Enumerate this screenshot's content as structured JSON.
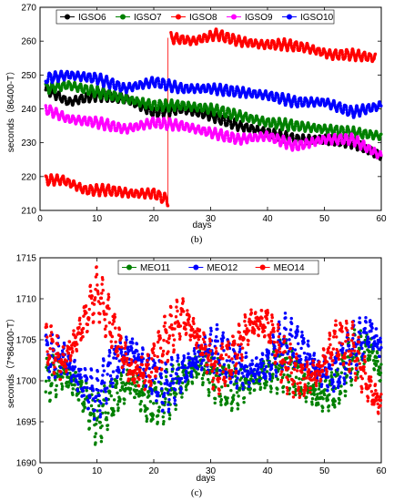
{
  "chart_data": [
    {
      "type": "scatter",
      "caption": "(b)",
      "xlabel": "days",
      "ylabel": "seconds（86400-T）",
      "xlim": [
        0,
        60
      ],
      "ylim": [
        210,
        270
      ],
      "xticks": [
        0,
        10,
        20,
        30,
        40,
        50,
        60
      ],
      "yticks": [
        210,
        220,
        230,
        240,
        250,
        260,
        270
      ],
      "grid": false,
      "legend_position": "top",
      "series": [
        {
          "name": "IGSO6",
          "color": "#000000",
          "marker": "circle",
          "x": [
            1,
            5,
            10,
            15,
            20,
            25,
            30,
            35,
            40,
            45,
            50,
            55,
            60
          ],
          "y": [
            246,
            242,
            244,
            243,
            239,
            240,
            238,
            235,
            233,
            231,
            231,
            230,
            226
          ],
          "ripple": 1.5,
          "period": 1
        },
        {
          "name": "IGSO7",
          "color": "#008000",
          "marker": "circle",
          "x": [
            1,
            5,
            10,
            15,
            20,
            25,
            30,
            35,
            40,
            45,
            50,
            55,
            60
          ],
          "y": [
            246,
            247,
            245,
            243,
            241,
            241,
            240,
            238,
            236,
            235,
            234,
            233,
            232
          ],
          "ripple": 1.5,
          "period": 1
        },
        {
          "name": "IGSO8",
          "color": "#ff0000",
          "marker": "circle",
          "x": [
            1,
            4,
            8,
            12,
            16,
            20,
            22.5,
            23,
            27,
            31,
            35,
            39,
            43,
            47,
            51,
            55,
            59
          ],
          "y": [
            219,
            219,
            216,
            216,
            215,
            215,
            213,
            261,
            260,
            262,
            260,
            259,
            259,
            258,
            256,
            256,
            255
          ],
          "ripple": 1.5,
          "period": 1
        },
        {
          "name": "IGSO9",
          "color": "#ff00ff",
          "marker": "circle",
          "x": [
            1,
            5,
            10,
            15,
            20,
            25,
            30,
            35,
            40,
            45,
            50,
            55,
            60
          ],
          "y": [
            240,
            237,
            236,
            234,
            236,
            235,
            233,
            231,
            232,
            229,
            231,
            231,
            226
          ],
          "ripple": 1.5,
          "period": 1
        },
        {
          "name": "IGSO10",
          "color": "#0000ff",
          "marker": "circle",
          "x": [
            1,
            5,
            10,
            15,
            20,
            25,
            30,
            35,
            40,
            45,
            50,
            55,
            60
          ],
          "y": [
            249,
            250,
            249,
            246,
            248,
            246,
            246,
            245,
            244,
            242,
            242,
            239,
            241
          ],
          "ripple": 1.5,
          "period": 1
        }
      ],
      "annotations": [
        {
          "type": "vertical-line",
          "x": 22.5,
          "y_from": 213,
          "y_to": 261,
          "color": "#ff0000"
        }
      ]
    },
    {
      "type": "scatter",
      "caption": "(c)",
      "xlabel": "days",
      "ylabel": "seconds（7*86400-T）",
      "xlim": [
        0,
        60
      ],
      "ylim": [
        1690,
        1715
      ],
      "xticks": [
        0,
        10,
        20,
        30,
        40,
        50,
        60
      ],
      "yticks": [
        1690,
        1695,
        1700,
        1705,
        1710,
        1715
      ],
      "grid": false,
      "legend_position": "top",
      "series": [
        {
          "name": "MEO11",
          "color": "#008000",
          "marker": "circle",
          "x": [
            1,
            4,
            7,
            10,
            13,
            16,
            19,
            22,
            25,
            28,
            31,
            34,
            37,
            40,
            43,
            46,
            49,
            52,
            55,
            58,
            60
          ],
          "y": [
            1700,
            1701,
            1699,
            1695,
            1698,
            1700,
            1697,
            1698,
            1700,
            1702,
            1700,
            1699,
            1700,
            1701,
            1702,
            1700,
            1698,
            1699,
            1703,
            1704,
            1701
          ],
          "ripple": 1.5,
          "period": 1
        },
        {
          "name": "MEO12",
          "color": "#0000ff",
          "marker": "circle",
          "x": [
            1,
            4,
            7,
            10,
            13,
            16,
            19,
            22,
            25,
            28,
            31,
            34,
            37,
            40,
            43,
            46,
            49,
            52,
            55,
            58,
            60
          ],
          "y": [
            1703,
            1703,
            1700,
            1698,
            1702,
            1704,
            1701,
            1699,
            1701,
            1703,
            1704,
            1702,
            1701,
            1702,
            1705,
            1704,
            1701,
            1701,
            1704,
            1706,
            1704
          ],
          "ripple": 1.5,
          "period": 1
        },
        {
          "name": "MEO14",
          "color": "#ff0000",
          "marker": "circle",
          "x": [
            1,
            4,
            7,
            10,
            13,
            16,
            19,
            22,
            25,
            28,
            31,
            34,
            37,
            40,
            43,
            46,
            49,
            52,
            55,
            58,
            60
          ],
          "y": [
            1705,
            1702,
            1706,
            1711,
            1706,
            1701,
            1701,
            1705,
            1708,
            1705,
            1701,
            1703,
            1707,
            1707,
            1702,
            1700,
            1701,
            1705,
            1704,
            1699,
            1697
          ],
          "ripple": 1.5,
          "period": 1
        }
      ]
    }
  ]
}
